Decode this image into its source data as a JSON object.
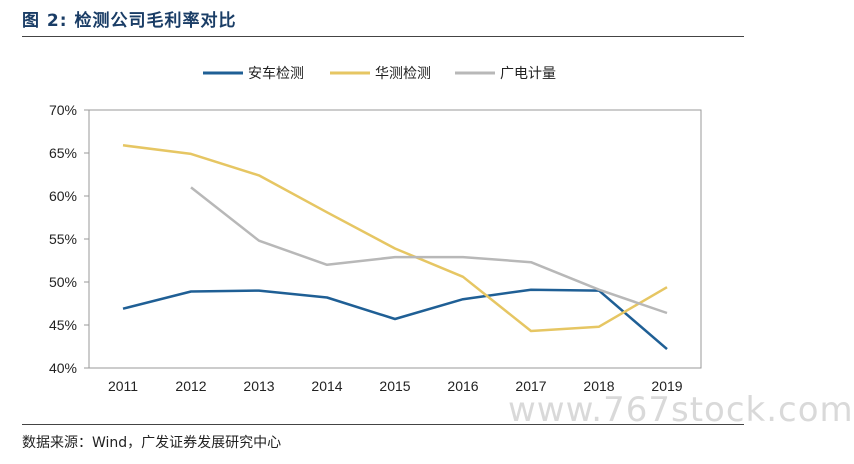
{
  "figure": {
    "title": "图 2: 检测公司毛利率对比",
    "source": "数据来源：Wind，广发证券发展研究中心",
    "watermark": "www.767stock.com"
  },
  "chart_data": {
    "type": "line",
    "x": [
      "2011",
      "2012",
      "2013",
      "2014",
      "2015",
      "2016",
      "2017",
      "2018",
      "2019"
    ],
    "ylim": [
      40,
      70
    ],
    "yticks": [
      40,
      45,
      50,
      55,
      60,
      65,
      70
    ],
    "ytick_labels": [
      "40%",
      "45%",
      "50%",
      "55%",
      "60%",
      "65%",
      "70%"
    ],
    "legend_position": "top",
    "grid": false,
    "series": [
      {
        "name": "安车检测",
        "color": "#1f5f95",
        "values": [
          46.9,
          48.9,
          49.0,
          48.2,
          45.7,
          48.0,
          49.1,
          49.0,
          42.2
        ]
      },
      {
        "name": "华测检测",
        "color": "#e6c663",
        "values": [
          65.9,
          64.9,
          62.4,
          58.1,
          53.9,
          50.6,
          44.3,
          44.8,
          49.4
        ]
      },
      {
        "name": "广电计量",
        "color": "#b8b8b8",
        "values": [
          null,
          61.0,
          54.8,
          52.0,
          52.9,
          52.9,
          52.3,
          49.1,
          46.4
        ]
      }
    ]
  }
}
